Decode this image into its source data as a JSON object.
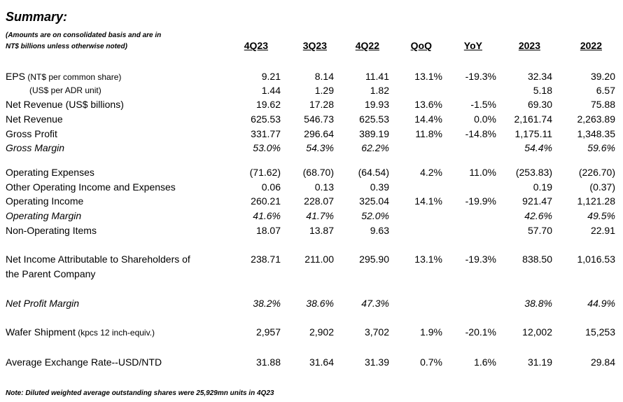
{
  "title": "Summary:",
  "note_top": [
    "(Amounts are on consolidated basis and are in",
    "NT$ billions unless otherwise noted)"
  ],
  "headers": [
    "4Q23",
    "3Q23",
    "4Q22",
    "QoQ",
    "YoY",
    "2023",
    "2022"
  ],
  "rows": [
    {
      "label": "EPS",
      "label_small": " (NT$ per common share)",
      "values": [
        "9.21",
        "8.14",
        "11.41",
        "13.1%",
        "-19.3%",
        "32.34",
        "39.20"
      ]
    },
    {
      "label": "(US$ per ADR unit)",
      "values": [
        "1.44",
        "1.29",
        "1.82",
        "",
        "",
        "5.18",
        "6.57"
      ]
    },
    {
      "label": "Net Revenue (US$ billions)",
      "values": [
        "19.62",
        "17.28",
        "19.93",
        "13.6%",
        "-1.5%",
        "69.30",
        "75.88"
      ]
    },
    {
      "label": "Net Revenue",
      "values": [
        "625.53",
        "546.73",
        "625.53",
        "14.4%",
        "0.0%",
        "2,161.74",
        "2,263.89"
      ]
    },
    {
      "label": "Gross Profit",
      "values": [
        "331.77",
        "296.64",
        "389.19",
        "11.8%",
        "-14.8%",
        "1,175.11",
        "1,348.35"
      ]
    },
    {
      "label": "Gross Margin",
      "values": [
        "53.0%",
        "54.3%",
        "62.2%",
        "",
        "",
        "54.4%",
        "59.6%"
      ]
    },
    {
      "label": "Operating Expenses",
      "values": [
        "(71.62)",
        "(68.70)",
        "(64.54)",
        "4.2%",
        "11.0%",
        "(253.83)",
        "(226.70)"
      ]
    },
    {
      "label": "Other Operating Income and Expenses",
      "values": [
        "0.06",
        "0.13",
        "0.39",
        "",
        "",
        "0.19",
        "(0.37)"
      ]
    },
    {
      "label": "Operating Income",
      "values": [
        "260.21",
        "228.07",
        "325.04",
        "14.1%",
        "-19.9%",
        "921.47",
        "1,121.28"
      ]
    },
    {
      "label": "Operating Margin",
      "values": [
        "41.6%",
        "41.7%",
        "52.0%",
        "",
        "",
        "42.6%",
        "49.5%"
      ]
    },
    {
      "label": "Non-Operating Items",
      "values": [
        "18.07",
        "13.87",
        "9.63",
        "",
        "",
        "57.70",
        "22.91"
      ]
    },
    {
      "label": "Net Income Attributable to Shareholders of",
      "label2": "the Parent Company",
      "values": [
        "238.71",
        "211.00",
        "295.90",
        "13.1%",
        "-19.3%",
        "838.50",
        "1,016.53"
      ]
    },
    {
      "label": "Net Profit Margin",
      "values": [
        "38.2%",
        "38.6%",
        "47.3%",
        "",
        "",
        "38.8%",
        "44.9%"
      ]
    },
    {
      "label": "Wafer Shipment",
      "label_small": " (kpcs 12 inch-equiv.)",
      "values": [
        "2,957",
        "2,902",
        "3,702",
        "1.9%",
        "-20.1%",
        "12,002",
        "15,253"
      ]
    },
    {
      "label": "Average Exchange Rate--USD/NTD",
      "values": [
        "31.88",
        "31.64",
        "31.39",
        "0.7%",
        "1.6%",
        "31.19",
        "29.84"
      ]
    }
  ],
  "note_bottom": "Note: Diluted weighted average outstanding shares were 25,929mn units in 4Q23"
}
